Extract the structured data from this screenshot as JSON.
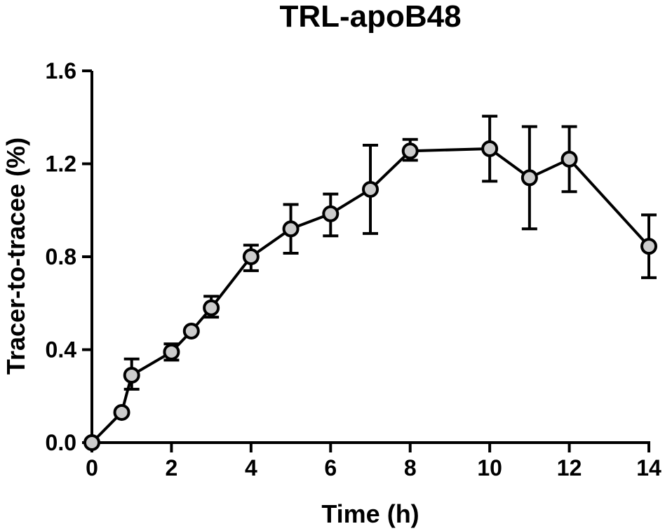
{
  "chart_data": {
    "type": "line",
    "title": "TRL-apoB48",
    "xlabel": "Time (h)",
    "ylabel": "Tracer-to-tracee (%)",
    "xlim": [
      0,
      14
    ],
    "ylim": [
      0,
      1.6
    ],
    "x_ticks": [
      "0",
      "2",
      "4",
      "6",
      "8",
      "10",
      "12",
      "14"
    ],
    "y_ticks": [
      "0.0",
      "0.4",
      "0.8",
      "1.2",
      "1.6"
    ],
    "grid": false,
    "legend": "none",
    "series": [
      {
        "x": [
          0,
          0.75,
          1,
          2,
          2.5,
          3,
          4,
          5,
          6,
          7,
          8,
          10,
          11,
          12,
          14
        ],
        "y": [
          0.0,
          0.13,
          0.29,
          0.39,
          0.48,
          0.58,
          0.8,
          0.92,
          0.985,
          1.09,
          1.255,
          1.265,
          1.14,
          1.22,
          0.845
        ],
        "err_low": [
          0.0,
          0.0,
          0.06,
          0.035,
          0.0,
          0.04,
          0.06,
          0.105,
          0.095,
          0.19,
          0.04,
          0.14,
          0.22,
          0.14,
          0.135
        ],
        "err_high": [
          0.0,
          0.0,
          0.07,
          0.035,
          0.0,
          0.05,
          0.05,
          0.105,
          0.085,
          0.19,
          0.05,
          0.14,
          0.22,
          0.14,
          0.135
        ],
        "marker_color": "#cccccc",
        "line_color": "#000000"
      }
    ]
  }
}
